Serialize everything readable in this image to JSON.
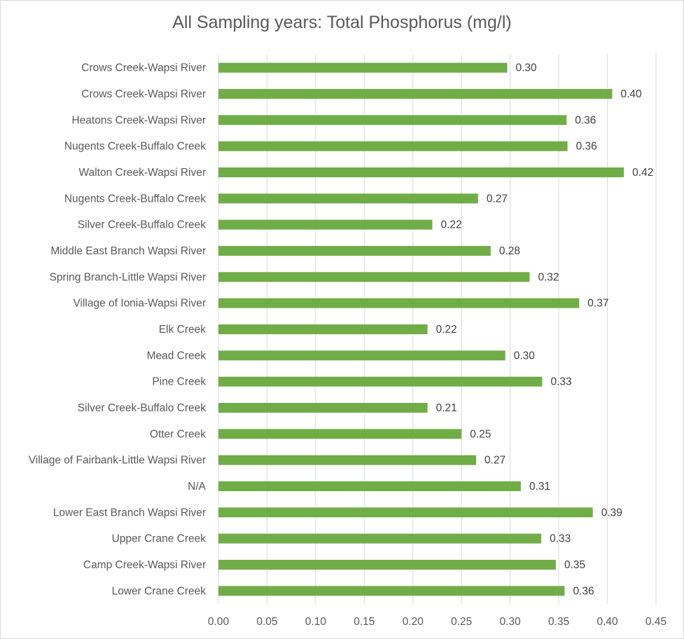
{
  "chart_data": {
    "type": "bar",
    "orientation": "horizontal",
    "title": "All Sampling years: Total Phosphorus  (mg/l)",
    "xlabel": "",
    "ylabel": "",
    "xlim": [
      0,
      0.45
    ],
    "xticks": [
      "0.00",
      "0.05",
      "0.10",
      "0.15",
      "0.20",
      "0.25",
      "0.30",
      "0.35",
      "0.40",
      "0.45"
    ],
    "grid": "vertical",
    "legend": "none",
    "bar_color": "#70ad47",
    "categories": [
      "Crows Creek-Wapsi River",
      "Crows Creek-Wapsi River",
      "Heatons Creek-Wapsi River",
      "Nugents Creek-Buffalo Creek",
      "Walton Creek-Wapsi River",
      "Nugents Creek-Buffalo Creek",
      "Silver Creek-Buffalo Creek",
      "Middle East Branch Wapsi River",
      "Spring Branch-Little Wapsi River",
      "Village of Ionia-Wapsi River",
      "Elk Creek",
      "Mead Creek",
      "Pine Creek",
      "Silver Creek-Buffalo Creek",
      "Otter Creek",
      "Village of Fairbank-Little Wapsi River",
      "N/A",
      "Lower East Branch Wapsi River",
      "Upper Crane Creek",
      "Camp Creek-Wapsi River",
      "Lower Crane Creek"
    ],
    "values": [
      0.297,
      0.405,
      0.358,
      0.359,
      0.417,
      0.267,
      0.22,
      0.28,
      0.32,
      0.371,
      0.215,
      0.295,
      0.333,
      0.215,
      0.25,
      0.265,
      0.311,
      0.385,
      0.332,
      0.347,
      0.356
    ],
    "value_labels": [
      "0.30",
      "0.40",
      "0.36",
      "0.36",
      "0.42",
      "0.27",
      "0.22",
      "0.28",
      "0.32",
      "0.37",
      "0.22",
      "0.30",
      "0.33",
      "0.21",
      "0.25",
      "0.27",
      "0.31",
      "0.39",
      "0.33",
      "0.35",
      "0.36"
    ]
  }
}
